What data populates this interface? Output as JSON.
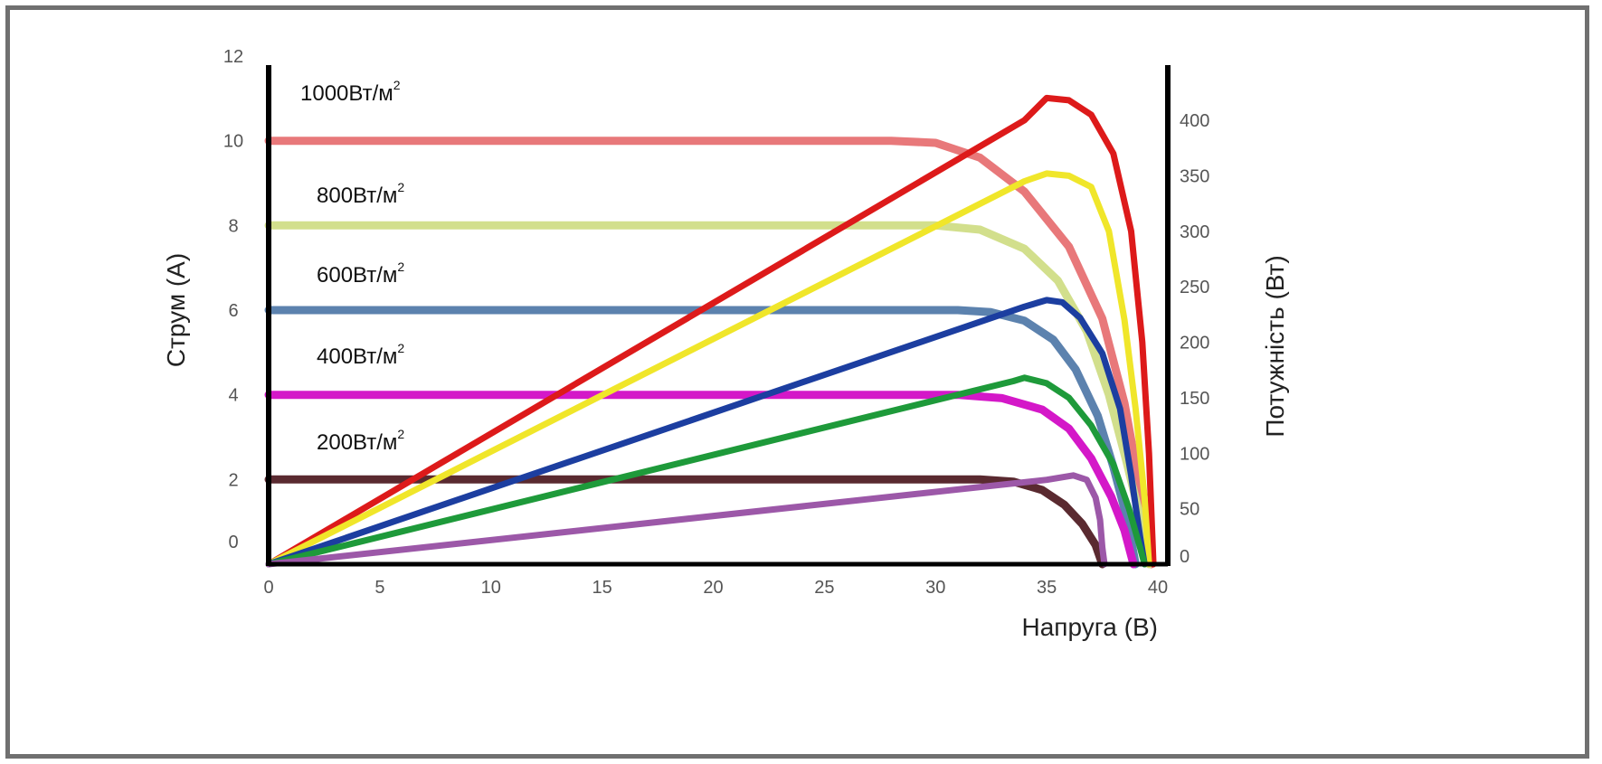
{
  "chart_data": {
    "type": "line",
    "title": "",
    "xlabel": "Напруга (В)",
    "ylabel_left": "Струм (А)",
    "ylabel_right": "Потужність (Вт)",
    "xlim": [
      0,
      40
    ],
    "ylim_left": [
      0,
      12
    ],
    "ylim_right": [
      0,
      450
    ],
    "x_ticks": [
      "0",
      "5",
      "10",
      "15",
      "20",
      "25",
      "30",
      "35",
      "40"
    ],
    "y_left_ticks": [
      "0",
      "2",
      "4",
      "6",
      "8",
      "10",
      "12"
    ],
    "y_right_ticks": [
      "0",
      "50",
      "100",
      "150",
      "200",
      "250",
      "300",
      "350",
      "400"
    ],
    "grid": false,
    "irradiance_labels": [
      {
        "text": "1000Вт/м",
        "sup": "2",
        "at_current": 12
      },
      {
        "text": "800Вт/м",
        "sup": "2",
        "at_current": 9
      },
      {
        "text": "600Вт/м",
        "sup": "2",
        "at_current": 7
      },
      {
        "text": "400Вт/м",
        "sup": "2",
        "at_current": 5
      },
      {
        "text": "200Вт/м",
        "sup": "2",
        "at_current": 3
      }
    ],
    "current_series": [
      {
        "irradiance": "1000Вт/м2",
        "color": "#e8787a",
        "isc": 10,
        "points": [
          [
            0,
            10
          ],
          [
            28,
            10
          ],
          [
            30,
            9.95
          ],
          [
            32,
            9.6
          ],
          [
            34,
            8.8
          ],
          [
            36,
            7.5
          ],
          [
            37.5,
            5.8
          ],
          [
            38.5,
            3.8
          ],
          [
            39.2,
            1.8
          ],
          [
            39.7,
            0
          ]
        ]
      },
      {
        "irradiance": "800Вт/м2",
        "color": "#d2df8c",
        "isc": 8,
        "points": [
          [
            0,
            8
          ],
          [
            30,
            8
          ],
          [
            32,
            7.9
          ],
          [
            34,
            7.45
          ],
          [
            35.5,
            6.7
          ],
          [
            36.8,
            5.5
          ],
          [
            37.8,
            4.0
          ],
          [
            38.6,
            2.4
          ],
          [
            39.3,
            0.9
          ],
          [
            39.6,
            0
          ]
        ]
      },
      {
        "irradiance": "600Вт/м2",
        "color": "#5c82ae",
        "isc": 6,
        "points": [
          [
            0,
            6
          ],
          [
            31,
            6
          ],
          [
            32.5,
            5.95
          ],
          [
            34,
            5.75
          ],
          [
            35.3,
            5.3
          ],
          [
            36.3,
            4.6
          ],
          [
            37.3,
            3.5
          ],
          [
            38,
            2.3
          ],
          [
            38.6,
            1.1
          ],
          [
            39.0,
            0
          ]
        ]
      },
      {
        "irradiance": "400Вт/м2",
        "color": "#d418c8",
        "isc": 4,
        "points": [
          [
            0,
            4
          ],
          [
            31,
            4
          ],
          [
            33,
            3.92
          ],
          [
            34.8,
            3.65
          ],
          [
            36,
            3.2
          ],
          [
            37,
            2.5
          ],
          [
            37.9,
            1.6
          ],
          [
            38.5,
            0.8
          ],
          [
            38.9,
            0
          ]
        ]
      },
      {
        "irradiance": "200Вт/м2",
        "color": "#5a2a30",
        "isc": 2,
        "points": [
          [
            0,
            2
          ],
          [
            32,
            2
          ],
          [
            33.5,
            1.95
          ],
          [
            34.8,
            1.75
          ],
          [
            35.8,
            1.4
          ],
          [
            36.6,
            0.95
          ],
          [
            37.2,
            0.45
          ],
          [
            37.5,
            0
          ]
        ]
      }
    ],
    "power_series": [
      {
        "irradiance": "1000Вт/м2",
        "color": "#dd1a1a",
        "pmax": 420,
        "points": [
          [
            0,
            0
          ],
          [
            34,
            400
          ],
          [
            35,
            420
          ],
          [
            36,
            418
          ],
          [
            37,
            405
          ],
          [
            38,
            370
          ],
          [
            38.8,
            300
          ],
          [
            39.3,
            200
          ],
          [
            39.6,
            100
          ],
          [
            39.8,
            0
          ]
        ]
      },
      {
        "irradiance": "800Вт/м2",
        "color": "#f0e62a",
        "pmax": 352,
        "points": [
          [
            0,
            0
          ],
          [
            34,
            345
          ],
          [
            35,
            352
          ],
          [
            36,
            350
          ],
          [
            37,
            340
          ],
          [
            37.8,
            300
          ],
          [
            38.5,
            220
          ],
          [
            39.0,
            140
          ],
          [
            39.4,
            60
          ],
          [
            39.6,
            0
          ]
        ]
      },
      {
        "irradiance": "600Вт/м2",
        "color": "#1c3ea0",
        "pmax": 238,
        "points": [
          [
            0,
            0
          ],
          [
            34,
            232
          ],
          [
            35,
            238
          ],
          [
            35.7,
            236
          ],
          [
            36.5,
            222
          ],
          [
            37.5,
            190
          ],
          [
            38.3,
            140
          ],
          [
            38.8,
            80
          ],
          [
            39.2,
            25
          ],
          [
            39.4,
            0
          ]
        ]
      },
      {
        "irradiance": "400Вт/м2",
        "color": "#1e9a3a",
        "pmax": 168,
        "points": [
          [
            0,
            0
          ],
          [
            33.5,
            165
          ],
          [
            34,
            168
          ],
          [
            35,
            163
          ],
          [
            36,
            150
          ],
          [
            37,
            125
          ],
          [
            38,
            90
          ],
          [
            38.7,
            50
          ],
          [
            39.2,
            15
          ],
          [
            39.4,
            0
          ]
        ]
      },
      {
        "irradiance": "200Вт/м2",
        "color": "#9c58a8",
        "pmax": 80,
        "points": [
          [
            0,
            0
          ],
          [
            35,
            76
          ],
          [
            36.2,
            80
          ],
          [
            36.8,
            76
          ],
          [
            37.2,
            60
          ],
          [
            37.4,
            40
          ],
          [
            37.5,
            15
          ],
          [
            37.6,
            0
          ]
        ]
      }
    ]
  }
}
